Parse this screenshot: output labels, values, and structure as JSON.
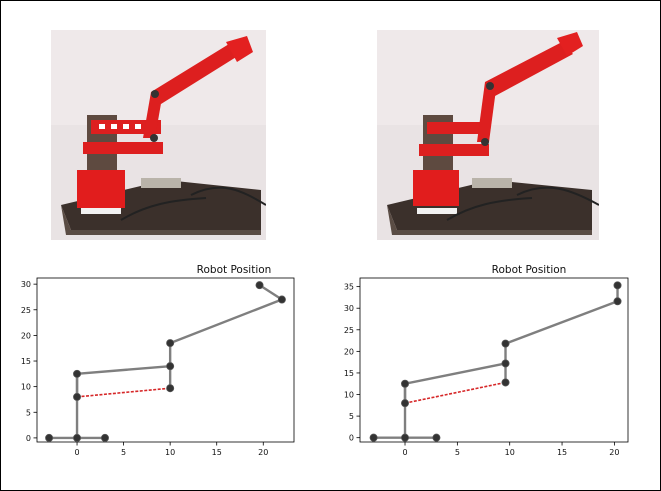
{
  "photos": [
    {
      "subject": "red robot arm on base (first pose)"
    },
    {
      "subject": "red robot arm on base (second pose)"
    }
  ],
  "colors": {
    "link": "#7f7f7f",
    "joint": "#333333",
    "diagonal": "#d62728",
    "axis": "#000000",
    "robot_red": "#dd1f1f",
    "background": "#e9e3e4"
  },
  "chart_data": [
    {
      "type": "line",
      "title": "Robot Position",
      "xlim": [
        -4.3,
        23.3
      ],
      "ylim": [
        -0.8,
        31.2
      ],
      "xticks": [
        0,
        5,
        10,
        15,
        20
      ],
      "yticks": [
        0,
        5,
        10,
        15,
        20,
        25,
        30
      ],
      "grid": false,
      "series": [
        {
          "role": "arm",
          "x": [
            -3,
            0,
            3
          ],
          "y": [
            0,
            0,
            0
          ]
        },
        {
          "role": "arm",
          "x": [
            0,
            0
          ],
          "y": [
            0,
            12.5
          ]
        },
        {
          "role": "arm",
          "x": [
            0,
            10,
            10,
            22,
            19.6
          ],
          "y": [
            12.5,
            14,
            18.5,
            27,
            29.8
          ]
        },
        {
          "role": "arm",
          "x": [
            0,
            0
          ],
          "y": [
            8,
            12.5
          ]
        },
        {
          "role": "arm",
          "x": [
            10,
            10
          ],
          "y": [
            9.7,
            14
          ]
        },
        {
          "role": "diagonal",
          "x": [
            0,
            10
          ],
          "y": [
            8,
            9.7
          ]
        }
      ],
      "joints": {
        "x": [
          -3,
          0,
          3,
          0,
          0,
          10,
          10,
          10,
          22,
          19.6
        ],
        "y": [
          0,
          0,
          0,
          8,
          12.5,
          9.7,
          14,
          18.5,
          27,
          29.8
        ]
      }
    },
    {
      "type": "line",
      "title": "Robot Position",
      "xlim": [
        -4.3,
        21.3
      ],
      "ylim": [
        -1,
        37
      ],
      "xticks": [
        0,
        5,
        10,
        15,
        20
      ],
      "yticks": [
        0,
        5,
        10,
        15,
        20,
        25,
        30,
        35
      ],
      "grid": false,
      "series": [
        {
          "role": "arm",
          "x": [
            -3,
            0,
            3
          ],
          "y": [
            0,
            0,
            0
          ]
        },
        {
          "role": "arm",
          "x": [
            0,
            0
          ],
          "y": [
            0,
            12.5
          ]
        },
        {
          "role": "arm",
          "x": [
            0,
            9.6,
            9.6,
            20.3,
            20.3
          ],
          "y": [
            12.5,
            17.2,
            21.8,
            31.6,
            35.3
          ]
        },
        {
          "role": "arm",
          "x": [
            0,
            0
          ],
          "y": [
            8,
            12.5
          ]
        },
        {
          "role": "arm",
          "x": [
            9.6,
            9.6
          ],
          "y": [
            12.8,
            17.2
          ]
        },
        {
          "role": "diagonal",
          "x": [
            0,
            9.6
          ],
          "y": [
            8,
            12.8
          ]
        }
      ],
      "joints": {
        "x": [
          -3,
          0,
          3,
          0,
          0,
          9.6,
          9.6,
          9.6,
          20.3,
          20.3
        ],
        "y": [
          0,
          0,
          0,
          8,
          12.5,
          12.8,
          17.2,
          21.8,
          31.6,
          35.3
        ]
      }
    }
  ]
}
